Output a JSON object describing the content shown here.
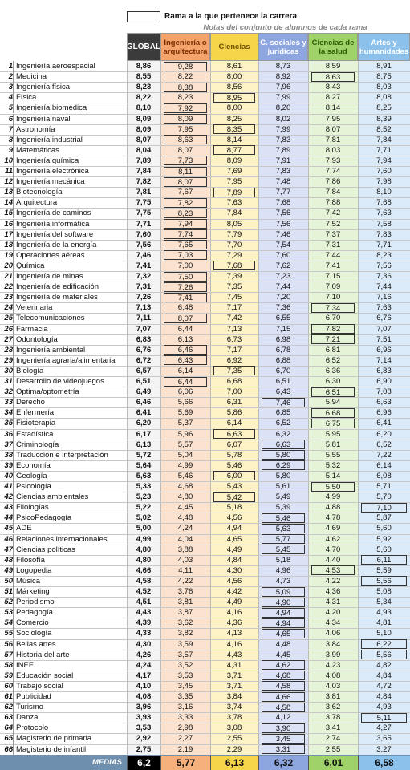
{
  "legend": "Rama a la que pertenece la carrera",
  "subtitle": "Notas del conjunto de alumnos de cada rama",
  "columns": [
    "GLOBAL",
    "Ingeniería o arquitectura",
    "Ciencias",
    "C. sociales y jurídicas",
    "Ciencias de la salud",
    "Artes y humanidades"
  ],
  "rows": [
    {
      "rank": 1,
      "name": "Ingeniería aeroespacial",
      "global": "8,86",
      "scores": [
        "9,28",
        "8,61",
        "8,73",
        "8,59",
        "8,91"
      ],
      "branch": 0
    },
    {
      "rank": 2,
      "name": "Medicina",
      "global": "8,55",
      "scores": [
        "8,22",
        "8,00",
        "8,92",
        "8,63",
        "8,75"
      ],
      "branch": 3
    },
    {
      "rank": 3,
      "name": "Ingeniería física",
      "global": "8,23",
      "scores": [
        "8,38",
        "8,56",
        "7,96",
        "8,43",
        "8,03"
      ],
      "branch": 0
    },
    {
      "rank": 4,
      "name": "Física",
      "global": "8,22",
      "scores": [
        "8,23",
        "8,95",
        "7,99",
        "8,27",
        "8,08"
      ],
      "branch": 1
    },
    {
      "rank": 5,
      "name": "Ingeniería biomédica",
      "global": "8,10",
      "scores": [
        "7,92",
        "8,00",
        "8,20",
        "8,14",
        "8,25"
      ],
      "branch": 0
    },
    {
      "rank": 6,
      "name": "Ingeniería naval",
      "global": "8,09",
      "scores": [
        "8,09",
        "8,25",
        "8,02",
        "7,95",
        "8,39"
      ],
      "branch": 0
    },
    {
      "rank": 7,
      "name": "Astronomía",
      "global": "8,09",
      "scores": [
        "7,95",
        "8,35",
        "7,99",
        "8,07",
        "8,52"
      ],
      "branch": 1
    },
    {
      "rank": 8,
      "name": "Ingeniería industrial",
      "global": "8,07",
      "scores": [
        "8,63",
        "8,14",
        "7,83",
        "7,81",
        "7,84"
      ],
      "branch": 0
    },
    {
      "rank": 9,
      "name": "Matemáticas",
      "global": "8,04",
      "scores": [
        "8,07",
        "8,77",
        "7,89",
        "8,03",
        "7,71"
      ],
      "branch": 1
    },
    {
      "rank": 10,
      "name": "Ingeniería química",
      "global": "7,89",
      "scores": [
        "7,73",
        "8,09",
        "7,91",
        "7,93",
        "7,94"
      ],
      "branch": 0
    },
    {
      "rank": 11,
      "name": "Ingeniería electrónica",
      "global": "7,84",
      "scores": [
        "8,11",
        "7,69",
        "7,83",
        "7,74",
        "7,60"
      ],
      "branch": 0
    },
    {
      "rank": 12,
      "name": "Ingeniería mecánica",
      "global": "7,82",
      "scores": [
        "8,07",
        "7,95",
        "7,48",
        "7,86",
        "7,98"
      ],
      "branch": 0
    },
    {
      "rank": 13,
      "name": "Biotecnología",
      "global": "7,81",
      "scores": [
        "7,67",
        "7,89",
        "7,77",
        "7,84",
        "8,10"
      ],
      "branch": 1
    },
    {
      "rank": 14,
      "name": "Arquitectura",
      "global": "7,75",
      "scores": [
        "7,82",
        "7,63",
        "7,68",
        "7,88",
        "7,68"
      ],
      "branch": 0
    },
    {
      "rank": 15,
      "name": "Ingeniería de caminos",
      "global": "7,75",
      "scores": [
        "8,23",
        "7,84",
        "7,56",
        "7,42",
        "7,63"
      ],
      "branch": 0
    },
    {
      "rank": 16,
      "name": "Ingeniería informática",
      "global": "7,71",
      "scores": [
        "7,94",
        "8,05",
        "7,56",
        "7,52",
        "7,58"
      ],
      "branch": 0
    },
    {
      "rank": 17,
      "name": "Ingeniería del software",
      "global": "7,60",
      "scores": [
        "7,74",
        "7,79",
        "7,46",
        "7,37",
        "7,83"
      ],
      "branch": 0
    },
    {
      "rank": 18,
      "name": "Ingeniería de la energía",
      "global": "7,56",
      "scores": [
        "7,65",
        "7,70",
        "7,54",
        "7,31",
        "7,71"
      ],
      "branch": 0
    },
    {
      "rank": 19,
      "name": "Operaciones aéreas",
      "global": "7,46",
      "scores": [
        "7,03",
        "7,29",
        "7,60",
        "7,44",
        "8,23"
      ],
      "branch": 0
    },
    {
      "rank": 20,
      "name": "Química",
      "global": "7,41",
      "scores": [
        "7,00",
        "7,68",
        "7,62",
        "7,41",
        "7,56"
      ],
      "branch": 1
    },
    {
      "rank": 21,
      "name": "Ingeniería de minas",
      "global": "7,32",
      "scores": [
        "7,50",
        "7,39",
        "7,23",
        "7,15",
        "7,36"
      ],
      "branch": 0
    },
    {
      "rank": 22,
      "name": "Ingeniería de edificación",
      "global": "7,31",
      "scores": [
        "7,26",
        "7,35",
        "7,44",
        "7,09",
        "7,44"
      ],
      "branch": 0
    },
    {
      "rank": 23,
      "name": "Ingeniería de materiales",
      "global": "7,26",
      "scores": [
        "7,41",
        "7,45",
        "7,20",
        "7,10",
        "7,16"
      ],
      "branch": 0
    },
    {
      "rank": 24,
      "name": "Veterinaria",
      "global": "7,13",
      "scores": [
        "6,48",
        "7,17",
        "7,36",
        "7,34",
        "7,63"
      ],
      "branch": 3
    },
    {
      "rank": 25,
      "name": "Telecomunicaciones",
      "global": "7,11",
      "scores": [
        "8,07",
        "7,42",
        "6,55",
        "6,70",
        "6,76"
      ],
      "branch": 0
    },
    {
      "rank": 26,
      "name": "Farmacia",
      "global": "7,07",
      "scores": [
        "6,44",
        "7,13",
        "7,15",
        "7,82",
        "7,07"
      ],
      "branch": 3
    },
    {
      "rank": 27,
      "name": "Odontología",
      "global": "6,83",
      "scores": [
        "6,13",
        "6,73",
        "6,98",
        "7,21",
        "7,51"
      ],
      "branch": 3
    },
    {
      "rank": 28,
      "name": "Ingeniería ambiental",
      "global": "6,76",
      "scores": [
        "6,46",
        "7,17",
        "6,78",
        "6,81",
        "6,96"
      ],
      "branch": 0
    },
    {
      "rank": 29,
      "name": "Ingeniería agraria/alimentaria",
      "global": "6,72",
      "scores": [
        "6,43",
        "6,92",
        "6,88",
        "6,52",
        "7,14"
      ],
      "branch": 0
    },
    {
      "rank": 30,
      "name": "Biología",
      "global": "6,57",
      "scores": [
        "6,14",
        "7,35",
        "6,70",
        "6,36",
        "6,83"
      ],
      "branch": 1
    },
    {
      "rank": 31,
      "name": "Desarrollo de videojuegos",
      "global": "6,51",
      "scores": [
        "6,44",
        "6,68",
        "6,51",
        "6,30",
        "6,90"
      ],
      "branch": 0
    },
    {
      "rank": 32,
      "name": "Optima/optometría",
      "global": "6,49",
      "scores": [
        "6,06",
        "7,00",
        "6,43",
        "6,51",
        "7,08"
      ],
      "branch": 3
    },
    {
      "rank": 33,
      "name": "Derecho",
      "global": "6,46",
      "scores": [
        "5,66",
        "6,31",
        "7,46",
        "5,94",
        "6,63"
      ],
      "branch": 2
    },
    {
      "rank": 34,
      "name": "Enfermería",
      "global": "6,41",
      "scores": [
        "5,69",
        "5,86",
        "6,85",
        "6,68",
        "6,96"
      ],
      "branch": 3
    },
    {
      "rank": 35,
      "name": "Fisioterapia",
      "global": "6,20",
      "scores": [
        "5,37",
        "6,14",
        "6,52",
        "6,75",
        "6,41"
      ],
      "branch": 3
    },
    {
      "rank": 36,
      "name": "Estadística",
      "global": "6,17",
      "scores": [
        "5,96",
        "6,63",
        "6,32",
        "5,95",
        "6,20"
      ],
      "branch": 1
    },
    {
      "rank": 37,
      "name": "Criminología",
      "global": "6,13",
      "scores": [
        "5,57",
        "6,07",
        "6,63",
        "5,81",
        "6,52"
      ],
      "branch": 2
    },
    {
      "rank": 38,
      "name": "Traducción e interpretación",
      "global": "5,72",
      "scores": [
        "5,04",
        "5,78",
        "5,80",
        "5,55",
        "7,22"
      ],
      "branch": 2
    },
    {
      "rank": 39,
      "name": "Economía",
      "global": "5,64",
      "scores": [
        "4,99",
        "5,46",
        "6,29",
        "5,32",
        "6,14"
      ],
      "branch": 2
    },
    {
      "rank": 40,
      "name": "Geología",
      "global": "5,63",
      "scores": [
        "5,46",
        "6,00",
        "5,80",
        "5,14",
        "6,08"
      ],
      "branch": 1
    },
    {
      "rank": 41,
      "name": "Psicología",
      "global": "5,33",
      "scores": [
        "4,68",
        "5,43",
        "5,61",
        "5,50",
        "5,71"
      ],
      "branch": 3
    },
    {
      "rank": 42,
      "name": "Ciencias ambientales",
      "global": "5,23",
      "scores": [
        "4,80",
        "5,42",
        "5,49",
        "4,99",
        "5,70"
      ],
      "branch": 1
    },
    {
      "rank": 43,
      "name": "Filologías",
      "global": "5,22",
      "scores": [
        "4,45",
        "5,18",
        "5,39",
        "4,88",
        "7,10"
      ],
      "branch": 4
    },
    {
      "rank": 44,
      "name": "PsicoPedagogía",
      "global": "5,02",
      "scores": [
        "4,48",
        "4,56",
        "5,46",
        "4,78",
        "5,87"
      ],
      "branch": 2
    },
    {
      "rank": 45,
      "name": "ADE",
      "global": "5,00",
      "scores": [
        "4,24",
        "4,94",
        "5,63",
        "4,69",
        "5,60"
      ],
      "branch": 2
    },
    {
      "rank": 46,
      "name": "Relaciones internacionales",
      "global": "4,99",
      "scores": [
        "4,04",
        "4,65",
        "5,77",
        "4,62",
        "5,92"
      ],
      "branch": 2
    },
    {
      "rank": 47,
      "name": "Ciencias políticas",
      "global": "4,80",
      "scores": [
        "3,88",
        "4,49",
        "5,45",
        "4,70",
        "5,60"
      ],
      "branch": 2
    },
    {
      "rank": 48,
      "name": "Filosofía",
      "global": "4,80",
      "scores": [
        "4,03",
        "4,84",
        "5,18",
        "4,40",
        "6,11"
      ],
      "branch": 4
    },
    {
      "rank": 49,
      "name": "Logopedia",
      "global": "4,66",
      "scores": [
        "4,11",
        "4,30",
        "4,96",
        "4,53",
        "5,59"
      ],
      "branch": 3
    },
    {
      "rank": 50,
      "name": "Música",
      "global": "4,58",
      "scores": [
        "4,22",
        "4,56",
        "4,73",
        "4,22",
        "5,56"
      ],
      "branch": 4
    },
    {
      "rank": 51,
      "name": "Márketing",
      "global": "4,52",
      "scores": [
        "3,76",
        "4,42",
        "5,09",
        "4,36",
        "5,08"
      ],
      "branch": 2
    },
    {
      "rank": 52,
      "name": "Periodismo",
      "global": "4,51",
      "scores": [
        "3,81",
        "4,49",
        "4,90",
        "4,31",
        "5,34"
      ],
      "branch": 2
    },
    {
      "rank": 53,
      "name": "Pedagogía",
      "global": "4,43",
      "scores": [
        "3,87",
        "4,16",
        "4,94",
        "4,20",
        "4,93"
      ],
      "branch": 2
    },
    {
      "rank": 54,
      "name": "Comercio",
      "global": "4,39",
      "scores": [
        "3,62",
        "4,36",
        "4,94",
        "4,34",
        "4,81"
      ],
      "branch": 2
    },
    {
      "rank": 55,
      "name": "Sociología",
      "global": "4,33",
      "scores": [
        "3,82",
        "4,13",
        "4,65",
        "4,06",
        "5,10"
      ],
      "branch": 2
    },
    {
      "rank": 56,
      "name": "Bellas artes",
      "global": "4,30",
      "scores": [
        "3,59",
        "4,16",
        "4,48",
        "3,84",
        "6,22"
      ],
      "branch": 4
    },
    {
      "rank": 57,
      "name": "Historia del arte",
      "global": "4,26",
      "scores": [
        "3,57",
        "4,43",
        "4,45",
        "3,99",
        "5,56"
      ],
      "branch": 4
    },
    {
      "rank": 58,
      "name": "INEF",
      "global": "4,24",
      "scores": [
        "3,52",
        "4,31",
        "4,62",
        "4,23",
        "4,82"
      ],
      "branch": 2
    },
    {
      "rank": 59,
      "name": "Educación social",
      "global": "4,17",
      "scores": [
        "3,53",
        "3,71",
        "4,68",
        "4,08",
        "4,84"
      ],
      "branch": 2
    },
    {
      "rank": 60,
      "name": "Trabajo social",
      "global": "4,10",
      "scores": [
        "3,45",
        "3,71",
        "4,58",
        "4,03",
        "4,72"
      ],
      "branch": 2
    },
    {
      "rank": 61,
      "name": "Publicidad",
      "global": "4,08",
      "scores": [
        "3,35",
        "3,84",
        "4,66",
        "3,81",
        "4,84"
      ],
      "branch": 2
    },
    {
      "rank": 62,
      "name": "Turismo",
      "global": "3,96",
      "scores": [
        "3,16",
        "3,74",
        "4,58",
        "3,62",
        "4,93"
      ],
      "branch": 2
    },
    {
      "rank": 63,
      "name": "Danza",
      "global": "3,93",
      "scores": [
        "3,33",
        "3,78",
        "4,12",
        "3,78",
        "5,11"
      ],
      "branch": 4
    },
    {
      "rank": 64,
      "name": "Protocolo",
      "global": "3,53",
      "scores": [
        "2,98",
        "3,08",
        "3,90",
        "3,41",
        "4,27"
      ],
      "branch": 2
    },
    {
      "rank": 65,
      "name": "Magisterio de primaria",
      "global": "2,92",
      "scores": [
        "2,27",
        "2,55",
        "3,45",
        "2,74",
        "3,65"
      ],
      "branch": 2
    },
    {
      "rank": 66,
      "name": "Magisterio de infantil",
      "global": "2,75",
      "scores": [
        "2,19",
        "2,29",
        "3,31",
        "2,55",
        "3,27"
      ],
      "branch": 2
    }
  ],
  "footer": {
    "label": "MEDIAS",
    "values": [
      "6,2",
      "5,77",
      "6,13",
      "6,32",
      "6,01",
      "6,58"
    ]
  }
}
